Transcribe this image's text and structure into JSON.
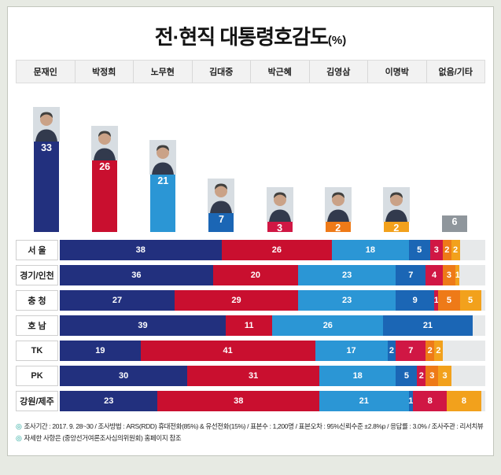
{
  "page": {
    "title": "전·현직 대통령호감도",
    "title_suffix": "(%)"
  },
  "presidents": [
    {
      "key": "moon-jae-in",
      "name": "문재인",
      "value": 33,
      "color": "#22307e",
      "has_photo": true
    },
    {
      "key": "park-chung-hee",
      "name": "박정희",
      "value": 26,
      "color": "#c90f2f",
      "has_photo": true
    },
    {
      "key": "roh-moo-hyun",
      "name": "노무현",
      "value": 21,
      "color": "#2b96d5",
      "has_photo": true
    },
    {
      "key": "kim-dae-jung",
      "name": "김대중",
      "value": 7,
      "color": "#1b66b5",
      "has_photo": true
    },
    {
      "key": "park-geun-hye",
      "name": "박근혜",
      "value": 3,
      "color": "#d01744",
      "has_photo": true
    },
    {
      "key": "kim-young-sam",
      "name": "김영삼",
      "value": 2,
      "color": "#ee7a18",
      "has_photo": true
    },
    {
      "key": "lee-myung-bak",
      "name": "이명박",
      "value": 2,
      "color": "#f2a11c",
      "has_photo": true
    },
    {
      "key": "none-etc",
      "name": "없음/기타",
      "value": 6,
      "color": "#8f969c",
      "has_photo": false
    }
  ],
  "regions": [
    {
      "name": "서 울",
      "segments": [
        {
          "p": "moon-jae-in",
          "v": 38
        },
        {
          "p": "park-chung-hee",
          "v": 26
        },
        {
          "p": "roh-moo-hyun",
          "v": 18
        },
        {
          "p": "kim-dae-jung",
          "v": 5
        },
        {
          "p": "park-geun-hye",
          "v": 3
        },
        {
          "p": "kim-young-sam",
          "v": 2
        },
        {
          "p": "lee-myung-bak",
          "v": 2
        }
      ]
    },
    {
      "name": "경기/인천",
      "segments": [
        {
          "p": "moon-jae-in",
          "v": 36
        },
        {
          "p": "park-chung-hee",
          "v": 20
        },
        {
          "p": "roh-moo-hyun",
          "v": 23
        },
        {
          "p": "kim-dae-jung",
          "v": 7
        },
        {
          "p": "park-geun-hye",
          "v": 4
        },
        {
          "p": "kim-young-sam",
          "v": 3
        },
        {
          "p": "lee-myung-bak",
          "v": 1
        }
      ]
    },
    {
      "name": "충 청",
      "segments": [
        {
          "p": "moon-jae-in",
          "v": 27
        },
        {
          "p": "park-chung-hee",
          "v": 29
        },
        {
          "p": "roh-moo-hyun",
          "v": 23
        },
        {
          "p": "kim-dae-jung",
          "v": 9
        },
        {
          "p": "park-geun-hye",
          "v": 1
        },
        {
          "p": "kim-young-sam",
          "v": 5
        },
        {
          "p": "lee-myung-bak",
          "v": 5
        }
      ]
    },
    {
      "name": "호 남",
      "segments": [
        {
          "p": "moon-jae-in",
          "v": 39
        },
        {
          "p": "park-chung-hee",
          "v": 11
        },
        {
          "p": "roh-moo-hyun",
          "v": 26
        },
        {
          "p": "kim-dae-jung",
          "v": 21
        }
      ]
    },
    {
      "name": "TK",
      "segments": [
        {
          "p": "moon-jae-in",
          "v": 19
        },
        {
          "p": "park-chung-hee",
          "v": 41
        },
        {
          "p": "roh-moo-hyun",
          "v": 17
        },
        {
          "p": "kim-dae-jung",
          "v": 2
        },
        {
          "p": "park-geun-hye",
          "v": 7
        },
        {
          "p": "kim-young-sam",
          "v": 2
        },
        {
          "p": "lee-myung-bak",
          "v": 2
        }
      ]
    },
    {
      "name": "PK",
      "segments": [
        {
          "p": "moon-jae-in",
          "v": 30
        },
        {
          "p": "park-chung-hee",
          "v": 31
        },
        {
          "p": "roh-moo-hyun",
          "v": 18
        },
        {
          "p": "kim-dae-jung",
          "v": 5
        },
        {
          "p": "park-geun-hye",
          "v": 2
        },
        {
          "p": "kim-young-sam",
          "v": 3
        },
        {
          "p": "lee-myung-bak",
          "v": 3
        }
      ]
    },
    {
      "name": "강원/제주",
      "segments": [
        {
          "p": "moon-jae-in",
          "v": 23
        },
        {
          "p": "park-chung-hee",
          "v": 38
        },
        {
          "p": "roh-moo-hyun",
          "v": 21
        },
        {
          "p": "kim-dae-jung",
          "v": 1
        },
        {
          "p": "park-geun-hye",
          "v": 8
        },
        {
          "p": "lee-myung-bak",
          "v": 8
        }
      ]
    }
  ],
  "remainder_color": "#e7e9ea",
  "footnotes": {
    "bullet": "◎",
    "lines": [
      "조사기간 : 2017. 9. 28~30 / 조사방법 : ARS(RDD) 휴대전화(85%) & 유선전화(15%) / 표본수 : 1,200명 / 표본오차 : 95%신뢰수준 ±2.8%p / 응답률 : 3.0% / 조사주관 : 리서치뷰",
      "자세한 사항은 (중앙선거여론조사심의위원회) 홈페이지 참조"
    ]
  },
  "chart_data": [
    {
      "type": "bar",
      "title": "전·현직 대통령호감도(%)",
      "categories": [
        "문재인",
        "박정희",
        "노무현",
        "김대중",
        "박근혜",
        "김영삼",
        "이명박",
        "없음/기타"
      ],
      "values": [
        33,
        26,
        21,
        7,
        3,
        2,
        2,
        6
      ],
      "colors": [
        "#22307e",
        "#c90f2f",
        "#2b96d5",
        "#1b66b5",
        "#d01744",
        "#ee7a18",
        "#f2a11c",
        "#8f969c"
      ],
      "xlabel": "",
      "ylabel": "",
      "ylim": [
        0,
        35
      ],
      "grid": false,
      "legend_position": "none",
      "value_labels": true
    },
    {
      "type": "bar",
      "orientation": "horizontal-stacked",
      "categories": [
        "서 울",
        "경기/인천",
        "충 청",
        "호 남",
        "TK",
        "PK",
        "강원/제주"
      ],
      "series": [
        {
          "name": "문재인",
          "color": "#22307e",
          "values": [
            38,
            36,
            27,
            39,
            19,
            30,
            23
          ]
        },
        {
          "name": "박정희",
          "color": "#c90f2f",
          "values": [
            26,
            20,
            29,
            11,
            41,
            31,
            38
          ]
        },
        {
          "name": "노무현",
          "color": "#2b96d5",
          "values": [
            18,
            23,
            23,
            26,
            17,
            18,
            21
          ]
        },
        {
          "name": "김대중",
          "color": "#1b66b5",
          "values": [
            5,
            7,
            9,
            21,
            2,
            5,
            1
          ]
        },
        {
          "name": "박근혜",
          "color": "#d01744",
          "values": [
            3,
            4,
            1,
            0,
            7,
            2,
            8
          ]
        },
        {
          "name": "김영삼",
          "color": "#ee7a18",
          "values": [
            2,
            3,
            5,
            0,
            2,
            3,
            0
          ]
        },
        {
          "name": "이명박",
          "color": "#f2a11c",
          "values": [
            2,
            1,
            5,
            0,
            2,
            3,
            8
          ]
        }
      ],
      "xlim": [
        0,
        100
      ],
      "value_labels": true,
      "note": "zero values not drawn; remainder to 100 shown as light-gray filler"
    }
  ]
}
